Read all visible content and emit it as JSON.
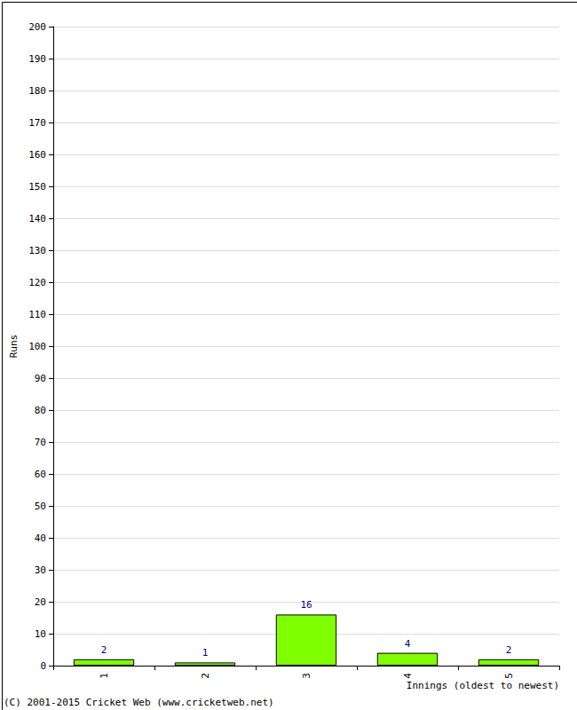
{
  "chart_data": {
    "type": "bar",
    "x_label": "Innings (oldest to newest)",
    "y_label": "Runs",
    "annotations": [
      "(C) 2001-2015 Cricket Web (www.cricketweb.net)"
    ],
    "categories": [
      "1",
      "2",
      "3",
      "4",
      "5"
    ],
    "values": [
      2,
      1,
      16,
      4,
      2
    ],
    "color": "#80ff00",
    "ylim": [
      0,
      200
    ],
    "yticks": [
      0,
      10,
      20,
      30,
      40,
      50,
      60,
      70,
      80,
      90,
      100,
      110,
      120,
      130,
      140,
      150,
      160,
      170,
      180,
      190,
      200
    ],
    "grid": true,
    "data_labels": true
  }
}
